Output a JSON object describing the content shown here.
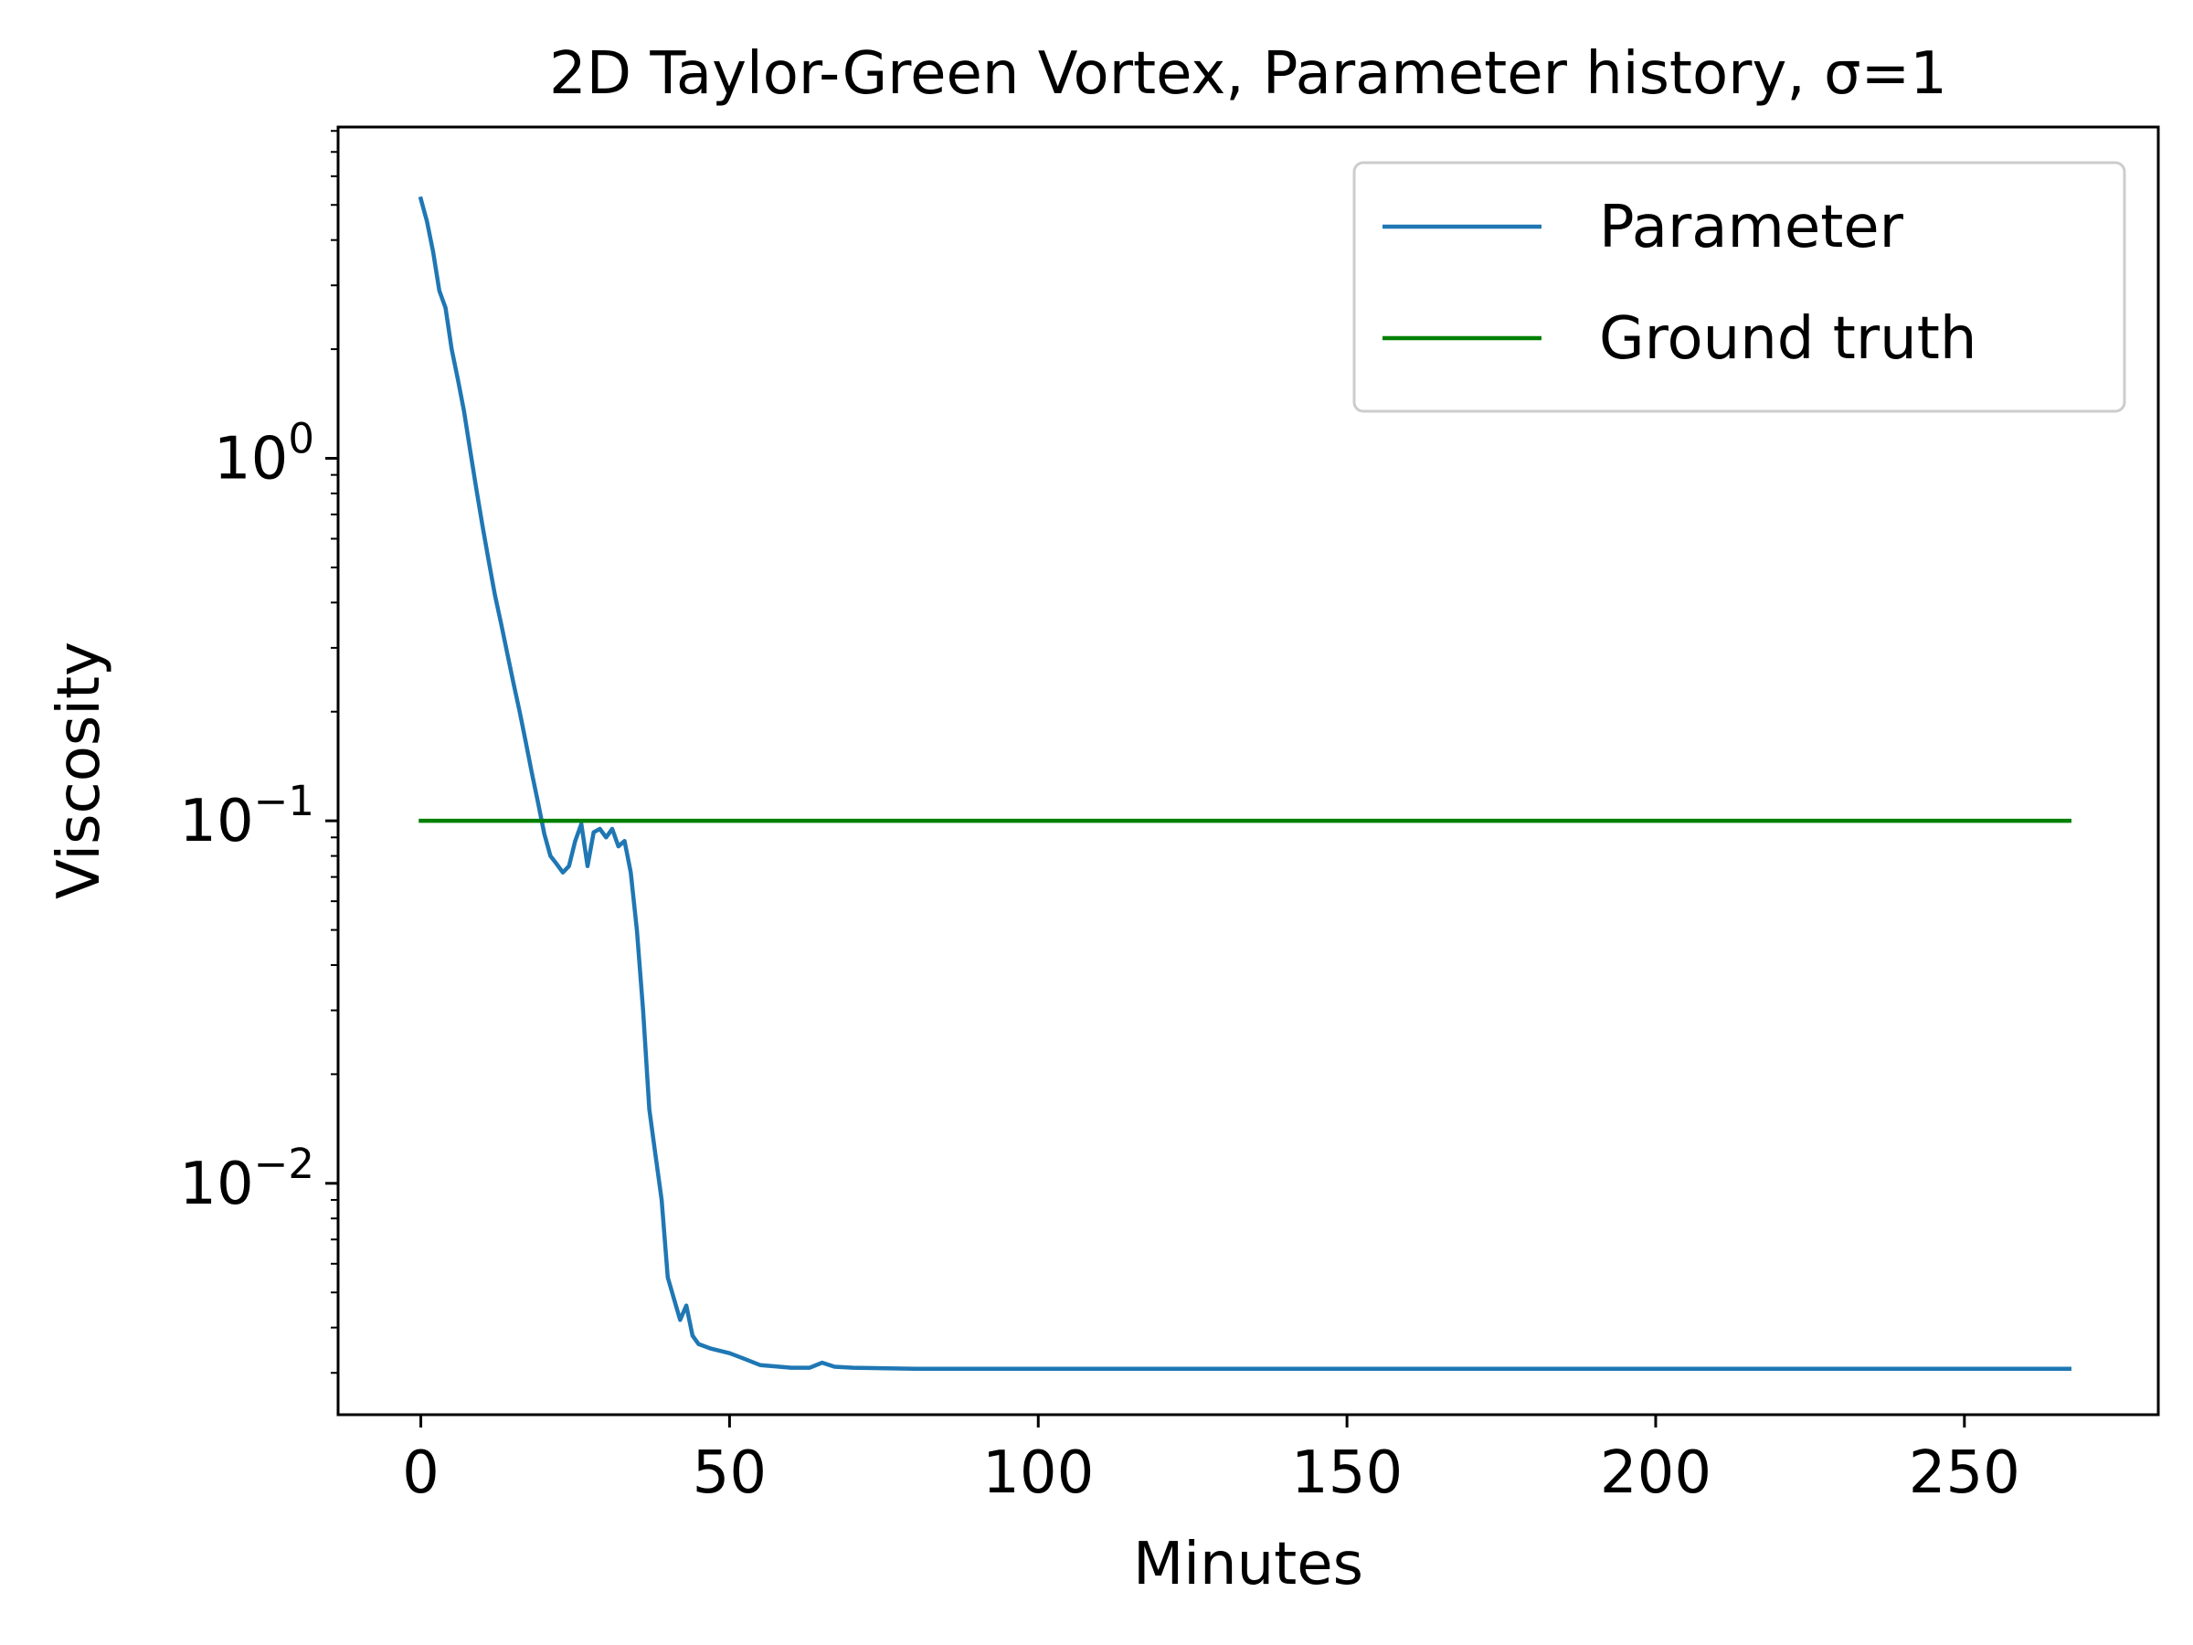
{
  "chart_data": {
    "type": "line",
    "title": "2D Taylor-Green Vortex, Parameter history, σ=1",
    "xlabel": "Minutes",
    "ylabel": "Viscosity",
    "xlim": [
      -13.4,
      281.4
    ],
    "ylim": [
      0.0023,
      8.2
    ],
    "yscale": "log",
    "grid": false,
    "legend_position": "top-right",
    "x_ticks": [
      0,
      50,
      100,
      150,
      200,
      250
    ],
    "y_ticks": [
      {
        "value": 1,
        "base": "10",
        "exp": "0"
      },
      {
        "value": 0.1,
        "base": "10",
        "exp": "−1"
      },
      {
        "value": 0.01,
        "base": "10",
        "exp": "−2"
      }
    ],
    "series": [
      {
        "name": "Parameter",
        "color": "#1f77b4",
        "points": [
          [
            0,
            5.2
          ],
          [
            1,
            4.5
          ],
          [
            2,
            3.7
          ],
          [
            3,
            2.9
          ],
          [
            4,
            2.6
          ],
          [
            5,
            2.0
          ],
          [
            6,
            1.65
          ],
          [
            7,
            1.35
          ],
          [
            8,
            1.05
          ],
          [
            9,
            0.82
          ],
          [
            10,
            0.65
          ],
          [
            11,
            0.52
          ],
          [
            12,
            0.42
          ],
          [
            13,
            0.35
          ],
          [
            14,
            0.29
          ],
          [
            15,
            0.24
          ],
          [
            16,
            0.2
          ],
          [
            17,
            0.165
          ],
          [
            18,
            0.135
          ],
          [
            19,
            0.112
          ],
          [
            20,
            0.092
          ],
          [
            21,
            0.08
          ],
          [
            22,
            0.076
          ],
          [
            23,
            0.072
          ],
          [
            24,
            0.075
          ],
          [
            25,
            0.088
          ],
          [
            26,
            0.098
          ],
          [
            27,
            0.075
          ],
          [
            28,
            0.093
          ],
          [
            29,
            0.095
          ],
          [
            30,
            0.09
          ],
          [
            31,
            0.095
          ],
          [
            32,
            0.085
          ],
          [
            33,
            0.088
          ],
          [
            34,
            0.072
          ],
          [
            35,
            0.05
          ],
          [
            36,
            0.03
          ],
          [
            37,
            0.016
          ],
          [
            38,
            0.012
          ],
          [
            39,
            0.009
          ],
          [
            40,
            0.0055
          ],
          [
            41,
            0.0048
          ],
          [
            42,
            0.0042
          ],
          [
            43,
            0.0046
          ],
          [
            44,
            0.0038
          ],
          [
            45,
            0.0036
          ],
          [
            47,
            0.0035
          ],
          [
            50,
            0.0034
          ],
          [
            52,
            0.0033
          ],
          [
            55,
            0.00315
          ],
          [
            60,
            0.0031
          ],
          [
            63,
            0.0031
          ],
          [
            65,
            0.0032
          ],
          [
            67,
            0.00312
          ],
          [
            70,
            0.0031
          ],
          [
            80,
            0.00308
          ],
          [
            100,
            0.00308
          ],
          [
            150,
            0.00308
          ],
          [
            200,
            0.00308
          ],
          [
            267,
            0.00308
          ]
        ]
      },
      {
        "name": "Ground truth",
        "color": "#008000",
        "points": [
          [
            0,
            0.1
          ],
          [
            267,
            0.1
          ]
        ]
      }
    ]
  }
}
